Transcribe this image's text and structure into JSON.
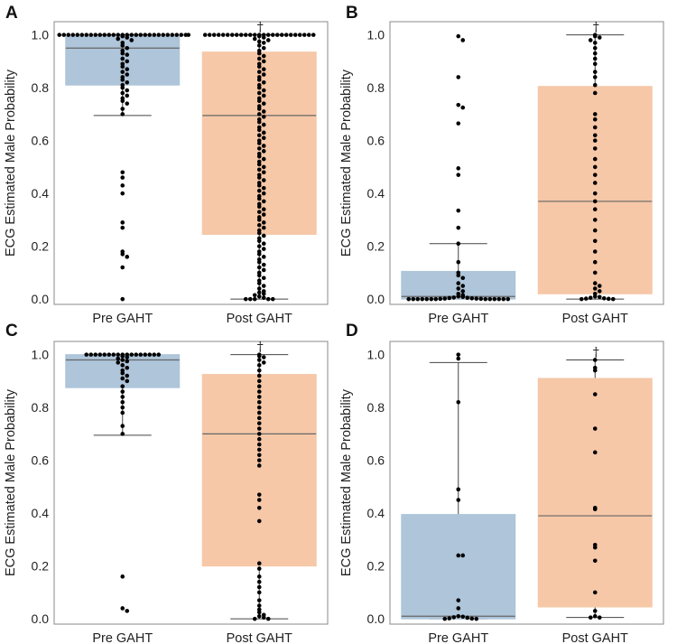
{
  "chart_data": [
    {
      "panel": "A",
      "type": "box+swarm",
      "ylabel": "ECG Estimated Male Probability",
      "ylim": [
        -0.02,
        1.05
      ],
      "yticks": [
        "0.0",
        "0.2",
        "0.4",
        "0.6",
        "0.8",
        "1.0"
      ],
      "categories": [
        "Pre GAHT",
        "Post GAHT"
      ],
      "colors": [
        "#aec5da",
        "#f6c8a8"
      ],
      "boxes": [
        {
          "category": "Pre GAHT",
          "q1": 0.81,
          "median": 0.95,
          "q3": 0.995,
          "whisker_low": 0.695,
          "whisker_high": 1.0
        },
        {
          "category": "Post GAHT",
          "q1": 0.245,
          "median": 0.695,
          "q3": 0.935,
          "whisker_low": 0.0,
          "whisker_high": 1.0
        }
      ],
      "points": [
        [
          1.0,
          1.0,
          1.0,
          1.0,
          1.0,
          1.0,
          1.0,
          1.0,
          1.0,
          1.0,
          1.0,
          1.0,
          1.0,
          1.0,
          1.0,
          1.0,
          1.0,
          1.0,
          1.0,
          1.0,
          1.0,
          1.0,
          1.0,
          1.0,
          1.0,
          1.0,
          1.0,
          1.0,
          1.0,
          1.0,
          0.995,
          0.99,
          0.985,
          0.98,
          0.97,
          0.96,
          0.95,
          0.94,
          0.93,
          0.925,
          0.91,
          0.9,
          0.89,
          0.88,
          0.87,
          0.86,
          0.85,
          0.84,
          0.83,
          0.82,
          0.81,
          0.8,
          0.79,
          0.78,
          0.77,
          0.76,
          0.75,
          0.74,
          0.72,
          0.7,
          0.48,
          0.46,
          0.43,
          0.4,
          0.29,
          0.27,
          0.18,
          0.17,
          0.16,
          0.12,
          0.0
        ],
        [
          1.0,
          1.0,
          1.0,
          1.0,
          1.0,
          1.0,
          1.0,
          1.0,
          1.0,
          1.0,
          1.0,
          1.0,
          1.0,
          1.0,
          1.0,
          1.0,
          1.0,
          1.0,
          1.0,
          1.0,
          1.0,
          1.0,
          1.0,
          1.0,
          1.0,
          0.995,
          0.99,
          0.985,
          0.98,
          0.975,
          0.97,
          0.96,
          0.95,
          0.94,
          0.93,
          0.92,
          0.91,
          0.9,
          0.89,
          0.88,
          0.87,
          0.86,
          0.85,
          0.84,
          0.83,
          0.82,
          0.81,
          0.8,
          0.79,
          0.78,
          0.77,
          0.76,
          0.75,
          0.74,
          0.73,
          0.72,
          0.71,
          0.7,
          0.69,
          0.68,
          0.67,
          0.66,
          0.65,
          0.64,
          0.63,
          0.62,
          0.61,
          0.6,
          0.59,
          0.58,
          0.57,
          0.56,
          0.55,
          0.54,
          0.53,
          0.52,
          0.51,
          0.5,
          0.49,
          0.48,
          0.47,
          0.46,
          0.45,
          0.44,
          0.43,
          0.42,
          0.41,
          0.4,
          0.39,
          0.38,
          0.37,
          0.36,
          0.35,
          0.34,
          0.33,
          0.32,
          0.31,
          0.3,
          0.29,
          0.28,
          0.27,
          0.26,
          0.25,
          0.24,
          0.23,
          0.22,
          0.21,
          0.2,
          0.19,
          0.18,
          0.17,
          0.16,
          0.15,
          0.14,
          0.13,
          0.12,
          0.11,
          0.1,
          0.09,
          0.08,
          0.07,
          0.06,
          0.05,
          0.04,
          0.03,
          0.025,
          0.02,
          0.015,
          0.01,
          0.005,
          0.0,
          0.0,
          0.0,
          0.0,
          0.0
        ]
      ],
      "annotation": "†"
    },
    {
      "panel": "B",
      "type": "box+swarm",
      "ylabel": "ECG Estimated Male Probability",
      "ylim": [
        -0.02,
        1.05
      ],
      "yticks": [
        "0.0",
        "0.2",
        "0.4",
        "0.6",
        "0.8",
        "1.0"
      ],
      "categories": [
        "Pre GAHT",
        "Post GAHT"
      ],
      "colors": [
        "#aec5da",
        "#f6c8a8"
      ],
      "boxes": [
        {
          "category": "Pre GAHT",
          "q1": 0.0,
          "median": 0.01,
          "q3": 0.105,
          "whisker_low": 0.0,
          "whisker_high": 0.21
        },
        {
          "category": "Post GAHT",
          "q1": 0.02,
          "median": 0.37,
          "q3": 0.805,
          "whisker_low": 0.0,
          "whisker_high": 1.0
        }
      ],
      "points": [
        [
          0.995,
          0.98,
          0.84,
          0.735,
          0.725,
          0.665,
          0.495,
          0.47,
          0.335,
          0.27,
          0.21,
          0.14,
          0.1,
          0.09,
          0.08,
          0.06,
          0.05,
          0.04,
          0.03,
          0.02,
          0.015,
          0.01,
          0.008,
          0.006,
          0.005,
          0.004,
          0.003,
          0.002,
          0.002,
          0.001,
          0.001,
          0.0,
          0.0,
          0.0,
          0.0,
          0.0,
          0.0,
          0.0,
          0.0,
          0.0,
          0.0,
          0.0,
          0.0,
          0.0
        ],
        [
          1.0,
          0.995,
          0.99,
          0.98,
          0.97,
          0.95,
          0.93,
          0.91,
          0.89,
          0.86,
          0.84,
          0.81,
          0.78,
          0.7,
          0.68,
          0.65,
          0.62,
          0.6,
          0.57,
          0.53,
          0.5,
          0.47,
          0.44,
          0.4,
          0.37,
          0.34,
          0.3,
          0.26,
          0.22,
          0.18,
          0.14,
          0.1,
          0.06,
          0.05,
          0.04,
          0.03,
          0.02,
          0.01,
          0.008,
          0.005,
          0.003,
          0.002,
          0.001,
          0.0,
          0.0
        ]
      ],
      "annotation": "†"
    },
    {
      "panel": "C",
      "type": "box+swarm",
      "ylabel": "ECG Estimated Male Probability",
      "ylim": [
        -0.02,
        1.05
      ],
      "yticks": [
        "0.0",
        "0.2",
        "0.4",
        "0.6",
        "0.8",
        "1.0"
      ],
      "categories": [
        "Pre GAHT",
        "Post GAHT"
      ],
      "colors": [
        "#aec5da",
        "#f6c8a8"
      ],
      "boxes": [
        {
          "category": "Pre GAHT",
          "q1": 0.875,
          "median": 0.98,
          "q3": 1.0,
          "whisker_low": 0.695,
          "whisker_high": 1.0
        },
        {
          "category": "Post GAHT",
          "q1": 0.2,
          "median": 0.7,
          "q3": 0.925,
          "whisker_low": 0.0,
          "whisker_high": 1.0
        }
      ],
      "points": [
        [
          1.0,
          1.0,
          1.0,
          1.0,
          1.0,
          1.0,
          1.0,
          1.0,
          1.0,
          1.0,
          1.0,
          1.0,
          1.0,
          1.0,
          1.0,
          1.0,
          1.0,
          0.995,
          0.99,
          0.985,
          0.98,
          0.975,
          0.97,
          0.96,
          0.95,
          0.94,
          0.93,
          0.92,
          0.91,
          0.9,
          0.88,
          0.86,
          0.84,
          0.82,
          0.8,
          0.78,
          0.73,
          0.7,
          0.16,
          0.04,
          0.03
        ],
        [
          1.0,
          0.995,
          0.99,
          0.98,
          0.97,
          0.96,
          0.94,
          0.92,
          0.9,
          0.88,
          0.86,
          0.84,
          0.82,
          0.8,
          0.78,
          0.76,
          0.74,
          0.72,
          0.7,
          0.68,
          0.66,
          0.64,
          0.62,
          0.6,
          0.58,
          0.47,
          0.45,
          0.42,
          0.37,
          0.21,
          0.19,
          0.16,
          0.14,
          0.12,
          0.1,
          0.07,
          0.05,
          0.035,
          0.025,
          0.015,
          0.01,
          0.005,
          0.0,
          0.0
        ]
      ],
      "annotation": "†"
    },
    {
      "panel": "D",
      "type": "box+swarm",
      "ylabel": "ECG Estimated Male Probability",
      "ylim": [
        -0.02,
        1.05
      ],
      "yticks": [
        "0.0",
        "0.2",
        "0.4",
        "0.6",
        "0.8",
        "1.0"
      ],
      "categories": [
        "Pre GAHT",
        "Post GAHT"
      ],
      "colors": [
        "#aec5da",
        "#f6c8a8"
      ],
      "boxes": [
        {
          "category": "Pre GAHT",
          "q1": 0.0,
          "median": 0.01,
          "q3": 0.395,
          "whisker_low": 0.0,
          "whisker_high": 0.97
        },
        {
          "category": "Post GAHT",
          "q1": 0.045,
          "median": 0.39,
          "q3": 0.91,
          "whisker_low": 0.005,
          "whisker_high": 0.98
        }
      ],
      "points": [
        [
          1.0,
          0.985,
          0.82,
          0.49,
          0.45,
          0.24,
          0.24,
          0.07,
          0.04,
          0.01,
          0.008,
          0.006,
          0.004,
          0.002,
          0.001,
          0.0,
          0.0
        ],
        [
          0.98,
          0.95,
          0.94,
          0.85,
          0.72,
          0.63,
          0.42,
          0.415,
          0.28,
          0.27,
          0.22,
          0.1,
          0.03,
          0.01,
          0.005,
          0.005
        ]
      ],
      "annotation": "†"
    }
  ]
}
